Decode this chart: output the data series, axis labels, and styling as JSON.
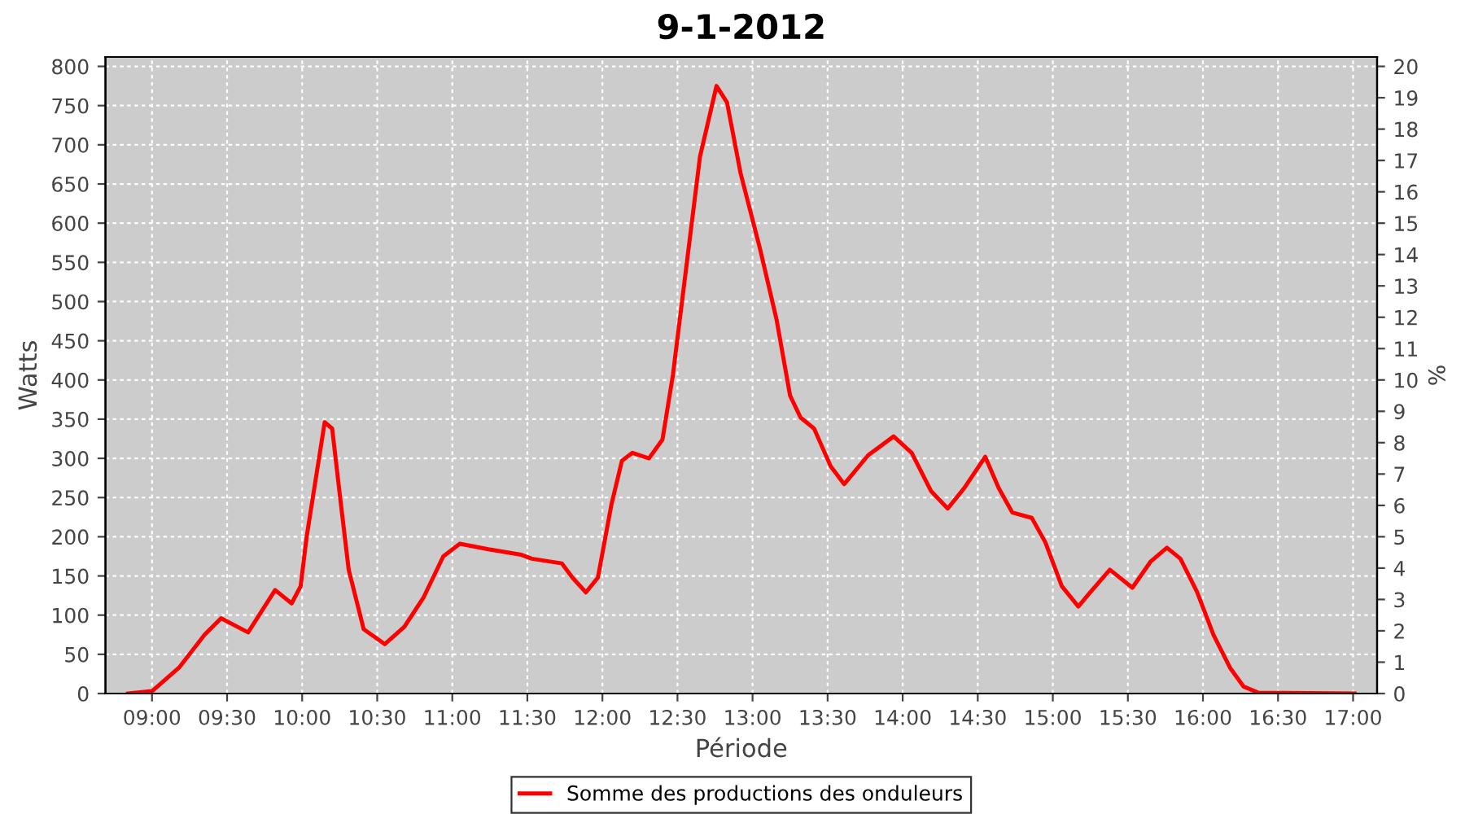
{
  "chart_data": {
    "type": "line",
    "title": "9-1-2012",
    "xlabel": "Période",
    "ylabel": "Watts",
    "y2label": "%",
    "xlim": [
      8.69,
      17.16
    ],
    "xticks": [
      {
        "value": 9,
        "label": "09:00"
      },
      {
        "value": 9.5,
        "label": "09:30"
      },
      {
        "value": 10,
        "label": "10:00"
      },
      {
        "value": 10.5,
        "label": "10:30"
      },
      {
        "value": 11,
        "label": "11:00"
      },
      {
        "value": 11.5,
        "label": "11:30"
      },
      {
        "value": 12,
        "label": "12:00"
      },
      {
        "value": 12.5,
        "label": "12:30"
      },
      {
        "value": 13,
        "label": "13:00"
      },
      {
        "value": 13.5,
        "label": "13:30"
      },
      {
        "value": 14,
        "label": "14:00"
      },
      {
        "value": 14.5,
        "label": "14:30"
      },
      {
        "value": 15,
        "label": "15:00"
      },
      {
        "value": 15.5,
        "label": "15:30"
      },
      {
        "value": 16,
        "label": "16:00"
      },
      {
        "value": 16.5,
        "label": "16:30"
      },
      {
        "value": 17,
        "label": "17:00"
      }
    ],
    "ylim": [
      0,
      812
    ],
    "yticks": [
      0,
      50,
      100,
      150,
      200,
      250,
      300,
      350,
      400,
      450,
      500,
      550,
      600,
      650,
      700,
      750,
      800
    ],
    "y2lim": [
      0,
      20.3
    ],
    "y2ticks": [
      0,
      1,
      2,
      3,
      4,
      5,
      6,
      7,
      8,
      9,
      10,
      11,
      12,
      13,
      14,
      15,
      16,
      17,
      18,
      19,
      20
    ],
    "grid": true,
    "legend": "bottom",
    "marker": "none",
    "line_style": "solid",
    "series": [
      {
        "name": "Somme des productions des onduleurs",
        "color": "#ff0000",
        "x": [
          8.84,
          9.0,
          9.18,
          9.35,
          9.46,
          9.64,
          9.82,
          9.93,
          9.99,
          10.03,
          10.15,
          10.2,
          10.25,
          10.31,
          10.41,
          10.55,
          10.68,
          10.81,
          10.94,
          11.05,
          11.24,
          11.46,
          11.53,
          11.73,
          11.8,
          11.89,
          11.97,
          12.06,
          12.13,
          12.2,
          12.31,
          12.4,
          12.47,
          12.56,
          12.65,
          12.76,
          12.83,
          12.92,
          13.05,
          13.16,
          13.25,
          13.32,
          13.41,
          13.52,
          13.61,
          13.77,
          13.94,
          14.06,
          14.19,
          14.3,
          14.41,
          14.55,
          14.64,
          14.73,
          14.86,
          14.95,
          15.06,
          15.17,
          15.24,
          15.38,
          15.53,
          15.65,
          15.76,
          15.85,
          15.96,
          16.07,
          16.18,
          16.27,
          16.37,
          17.01
        ],
        "values": [
          0,
          3,
          33,
          75,
          96,
          78,
          132,
          115,
          137,
          200,
          346,
          338,
          255,
          158,
          82,
          63,
          85,
          123,
          175,
          191,
          184,
          177,
          172,
          166,
          148,
          129,
          148,
          241,
          297,
          307,
          300,
          324,
          407,
          546,
          685,
          775,
          754,
          664,
          567,
          477,
          380,
          352,
          338,
          290,
          267,
          304,
          328,
          307,
          258,
          236,
          262,
          302,
          262,
          231,
          224,
          193,
          137,
          111,
          127,
          158,
          135,
          168,
          186,
          172,
          130,
          75,
          33,
          9,
          1,
          0
        ]
      }
    ]
  }
}
